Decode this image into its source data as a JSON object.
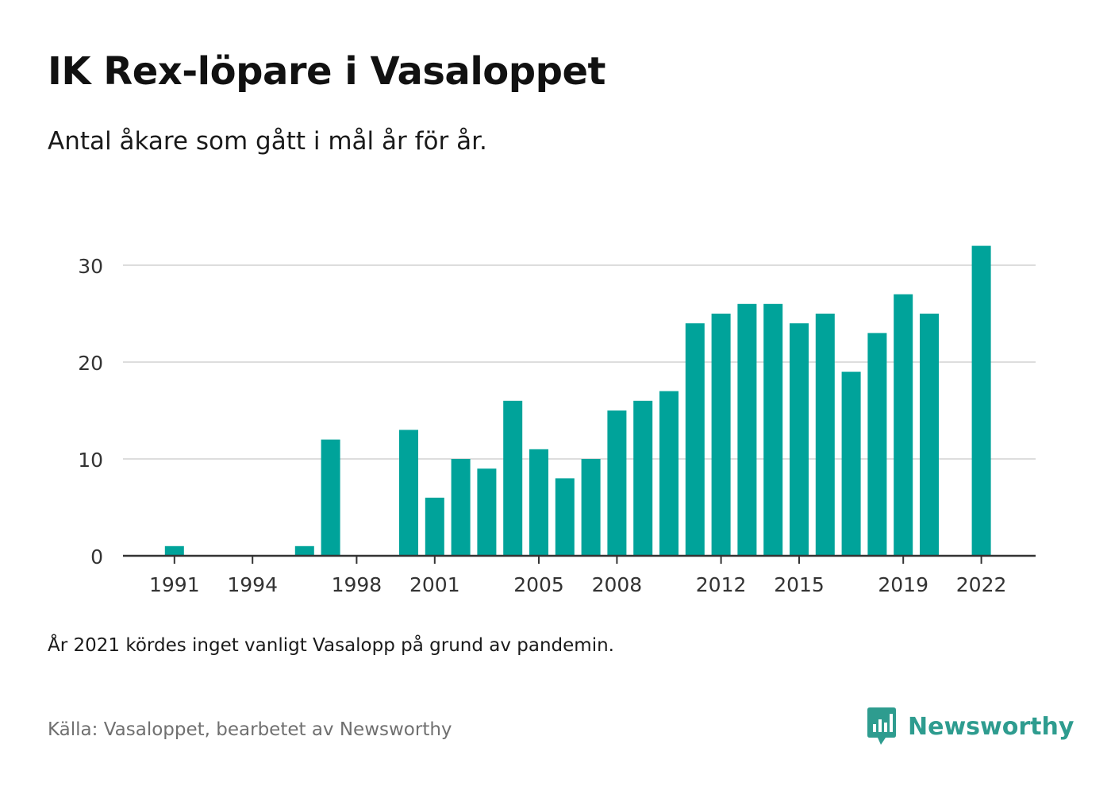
{
  "title": "IK Rex-löpare i Vasaloppet",
  "subtitle": "Antal åkare som gått i mål år för år.",
  "note": "År 2021 kördes inget vanligt Vasalopp på grund av pandemin.",
  "source": "Källa: Vasaloppet, bearbetet av Newsworthy",
  "brand": {
    "name": "Newsworthy",
    "logo_icon": "newsworthy-logo-icon",
    "color": "#2e9c8f"
  },
  "chart_data": {
    "type": "bar",
    "title": "IK Rex-löpare i Vasaloppet",
    "xlabel": "",
    "ylabel": "",
    "ylim": [
      0,
      32
    ],
    "yticks": [
      0,
      10,
      20,
      30
    ],
    "xticks": [
      "1991",
      "1994",
      "1998",
      "2001",
      "2005",
      "2008",
      "2012",
      "2015",
      "2019",
      "2022"
    ],
    "grid": true,
    "legend": "none",
    "bar_color": "#00a39a",
    "categories": [
      1990,
      1991,
      1992,
      1993,
      1994,
      1995,
      1996,
      1997,
      1998,
      1999,
      2000,
      2001,
      2002,
      2003,
      2004,
      2005,
      2006,
      2007,
      2008,
      2009,
      2010,
      2011,
      2012,
      2013,
      2014,
      2015,
      2016,
      2017,
      2018,
      2019,
      2020,
      2021,
      2022
    ],
    "values": [
      0,
      1,
      0,
      0,
      0,
      0,
      1,
      12,
      0,
      0,
      13,
      6,
      10,
      9,
      16,
      11,
      8,
      10,
      15,
      16,
      17,
      24,
      25,
      26,
      26,
      24,
      25,
      19,
      23,
      27,
      25,
      0,
      32
    ]
  }
}
